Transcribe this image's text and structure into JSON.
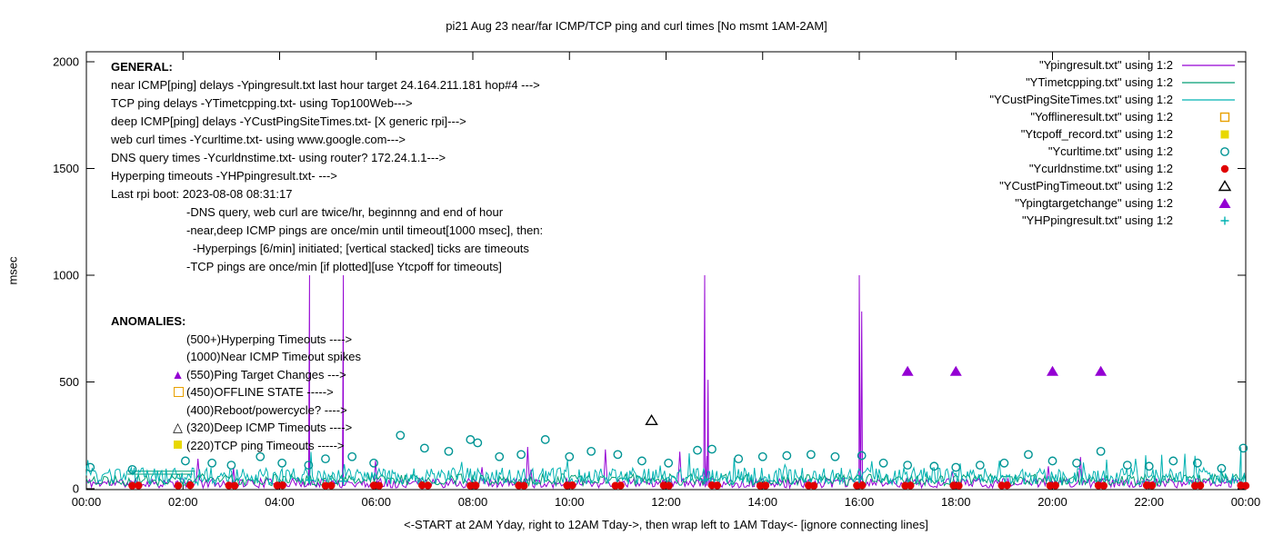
{
  "colors": {
    "purple": "#9400d3",
    "green": "#009e73",
    "teal": "#00b2b2",
    "cyan": "#009494",
    "orange": "#e8a000",
    "yellow": "#e8d800",
    "red": "#e00000",
    "black": "#000000"
  },
  "general": {
    "heading": "GENERAL:",
    "lines": [
      "near ICMP[ping] delays -Ypingresult.txt last hour target 24.164.211.181 hop#4 --->",
      "TCP ping delays -YTimetcpping.txt- using Top100Web--->",
      "deep ICMP[ping] delays -YCustPingSiteTimes.txt- [X generic rpi]--->",
      "web curl times -Ycurltime.txt- using www.google.com--->",
      "DNS query times -Ycurldnstime.txt- using router? 172.24.1.1--->",
      "Hyperping timeouts -YHPpingresult.txt- --->",
      "Last rpi boot: 2023-08-08 08:31:17"
    ],
    "notes": [
      "-DNS query, web curl are twice/hr, beginnng and end of hour",
      "-near,deep ICMP pings are once/min until timeout[1000 msec], then:",
      "-Hyperpings [6/min] initiated; [vertical stacked] ticks are timeouts",
      "-TCP pings are once/min [if plotted][use Ytcpoff for timeouts]"
    ]
  },
  "anomalies": {
    "heading": "ANOMALIES:",
    "items": [
      {
        "text": "(500+)Hyperping Timeouts ---->",
        "marker": null
      },
      {
        "text": "(1000)Near ICMP Timeout spikes",
        "marker": null
      },
      {
        "text": "(550)Ping Target Changes --->",
        "marker": {
          "type": "triangle-filled",
          "color": "purple"
        }
      },
      {
        "text": "(450)OFFLINE STATE ----->",
        "marker": {
          "type": "square-open",
          "color": "orange"
        }
      },
      {
        "text": "(400)Reboot/powercycle? ---->",
        "marker": null
      },
      {
        "text": "(320)Deep ICMP Timeouts ---->",
        "marker": {
          "type": "triangle-open",
          "color": "black"
        }
      },
      {
        "text": "(220)TCP ping Timeouts ----->",
        "marker": {
          "type": "square-filled",
          "color": "yellow"
        }
      }
    ]
  },
  "chart_data": {
    "type": "line-scatter",
    "title": "pi21 Aug 23  near/far ICMP/TCP ping and curl times [No msmt 1AM-2AM]",
    "xlabel": "<-START at 2AM Yday, right to 12AM Tday->, then wrap left to 1AM Tday<- [ignore connecting lines]",
    "ylabel": "msec",
    "xlim": [
      0,
      24
    ],
    "ylim": [
      0,
      2000
    ],
    "y_ticks": [
      0,
      500,
      1000,
      1500,
      2000
    ],
    "x_ticks": [
      {
        "h": 0,
        "label": "00:00"
      },
      {
        "h": 2,
        "label": "02:00"
      },
      {
        "h": 4,
        "label": "04:00"
      },
      {
        "h": 6,
        "label": "06:00"
      },
      {
        "h": 8,
        "label": "08:00"
      },
      {
        "h": 10,
        "label": "10:00"
      },
      {
        "h": 12,
        "label": "12:00"
      },
      {
        "h": 14,
        "label": "14:00"
      },
      {
        "h": 16,
        "label": "16:00"
      },
      {
        "h": 18,
        "label": "18:00"
      },
      {
        "h": 20,
        "label": "20:00"
      },
      {
        "h": 22,
        "label": "22:00"
      },
      {
        "h": 24,
        "label": "00:00"
      }
    ],
    "legend_position": "top-right",
    "grid": false,
    "series": [
      {
        "name": "Ypingresult",
        "legend": "\"Ypingresult.txt\" using 1:2",
        "kind": "line",
        "color": "purple",
        "noise": {
          "seed": 11,
          "dx": 0.035,
          "base": 4,
          "range": 45,
          "spike_prob": 0.012,
          "spike_min": 80,
          "spike_max": 220
        },
        "spikes": [
          [
            4.62,
            1000
          ],
          [
            5.32,
            1000
          ],
          [
            12.8,
            1000
          ],
          [
            12.87,
            510
          ],
          [
            16.0,
            1000
          ],
          [
            16.05,
            830
          ]
        ]
      },
      {
        "name": "YTimetcpping",
        "legend": "\"YTimetcpping.txt\" using 1:2",
        "kind": "line",
        "color": "green",
        "noise": {
          "seed": 22,
          "dx": 0.04,
          "base": 14,
          "range": 55,
          "spike_prob": 0.008,
          "spike_min": 80,
          "spike_max": 160
        },
        "segments": [
          [
            0.85,
            68,
            2.2,
            68
          ],
          [
            0.9,
            82,
            2.25,
            82
          ]
        ]
      },
      {
        "name": "YCustPingSiteTimes",
        "legend": "\"YCustPingSiteTimes.txt\" using 1:2",
        "kind": "line",
        "color": "teal",
        "noise": {
          "seed": 33,
          "dx": 0.03,
          "base": 18,
          "range": 80,
          "spike_prob": 0.02,
          "spike_min": 100,
          "spike_max": 175
        },
        "spikes": [
          [
            23.9,
            195
          ]
        ]
      },
      {
        "name": "Yofflineresult",
        "legend": "\"Yofflineresult.txt\" using 1:2",
        "kind": "points",
        "marker": "square-open",
        "color": "orange",
        "points": []
      },
      {
        "name": "Ytcpoff_record",
        "legend": "\"Ytcpoff_record.txt\" using 1:2",
        "kind": "points",
        "marker": "square-filled",
        "color": "yellow",
        "points": []
      },
      {
        "name": "Ycurltime",
        "legend": "\"Ycurltime.txt\" using 1:2",
        "kind": "points",
        "marker": "circle-open",
        "color": "cyan",
        "points": [
          [
            0.08,
            100
          ],
          [
            0.95,
            90
          ],
          [
            2.05,
            130
          ],
          [
            2.6,
            120
          ],
          [
            3.0,
            110
          ],
          [
            3.6,
            150
          ],
          [
            4.05,
            120
          ],
          [
            4.6,
            110
          ],
          [
            4.95,
            140
          ],
          [
            5.5,
            150
          ],
          [
            5.95,
            120
          ],
          [
            6.5,
            250
          ],
          [
            7.0,
            190
          ],
          [
            7.5,
            175
          ],
          [
            7.95,
            230
          ],
          [
            8.1,
            215
          ],
          [
            8.55,
            150
          ],
          [
            9.0,
            160
          ],
          [
            9.5,
            230
          ],
          [
            10.0,
            150
          ],
          [
            10.45,
            175
          ],
          [
            11.0,
            160
          ],
          [
            11.5,
            130
          ],
          [
            12.05,
            120
          ],
          [
            12.65,
            180
          ],
          [
            12.95,
            185
          ],
          [
            13.5,
            140
          ],
          [
            14.0,
            150
          ],
          [
            14.5,
            155
          ],
          [
            15.0,
            160
          ],
          [
            15.5,
            150
          ],
          [
            16.05,
            155
          ],
          [
            16.5,
            120
          ],
          [
            17.0,
            110
          ],
          [
            17.55,
            105
          ],
          [
            18.0,
            100
          ],
          [
            18.5,
            110
          ],
          [
            19.0,
            120
          ],
          [
            19.5,
            160
          ],
          [
            20.0,
            130
          ],
          [
            20.5,
            120
          ],
          [
            21.0,
            175
          ],
          [
            21.55,
            110
          ],
          [
            22.0,
            105
          ],
          [
            22.5,
            130
          ],
          [
            23.0,
            120
          ],
          [
            23.5,
            95
          ],
          [
            23.95,
            190
          ]
        ]
      },
      {
        "name": "Ycurldnstime",
        "legend": "\"Ycurldnstime.txt\" using 1:2",
        "kind": "points",
        "marker": "circle-filled",
        "color": "red",
        "points": [
          [
            0.95,
            14
          ],
          [
            1.08,
            15
          ],
          [
            1.9,
            14
          ],
          [
            2.15,
            16
          ],
          [
            2.95,
            15
          ],
          [
            3.07,
            14
          ],
          [
            3.95,
            15
          ],
          [
            4.06,
            16
          ],
          [
            4.95,
            14
          ],
          [
            5.07,
            15
          ],
          [
            5.95,
            15
          ],
          [
            6.06,
            14
          ],
          [
            6.95,
            16
          ],
          [
            7.07,
            15
          ],
          [
            7.95,
            14
          ],
          [
            8.06,
            15
          ],
          [
            8.95,
            15
          ],
          [
            9.06,
            14
          ],
          [
            9.95,
            15
          ],
          [
            10.06,
            16
          ],
          [
            10.95,
            14
          ],
          [
            11.06,
            15
          ],
          [
            11.95,
            15
          ],
          [
            12.06,
            14
          ],
          [
            12.95,
            16
          ],
          [
            13.06,
            15
          ],
          [
            13.95,
            14
          ],
          [
            14.06,
            15
          ],
          [
            14.95,
            15
          ],
          [
            15.06,
            14
          ],
          [
            15.95,
            15
          ],
          [
            16.06,
            16
          ],
          [
            16.95,
            14
          ],
          [
            17.06,
            15
          ],
          [
            17.95,
            15
          ],
          [
            18.06,
            14
          ],
          [
            18.95,
            15
          ],
          [
            19.06,
            16
          ],
          [
            19.95,
            14
          ],
          [
            20.06,
            15
          ],
          [
            20.95,
            15
          ],
          [
            21.06,
            14
          ],
          [
            21.95,
            16
          ],
          [
            22.06,
            15
          ],
          [
            22.95,
            14
          ],
          [
            23.06,
            15
          ],
          [
            23.9,
            15
          ],
          [
            24.0,
            14
          ]
        ]
      },
      {
        "name": "YCustPingTimeout",
        "legend": "\"YCustPingTimeout.txt\" using 1:2",
        "kind": "points",
        "marker": "triangle-open",
        "color": "black",
        "points": [
          [
            11.7,
            320
          ]
        ]
      },
      {
        "name": "Ypingtargetchange",
        "legend": "\"Ypingtargetchange\" using 1:2",
        "kind": "points",
        "marker": "triangle-filled",
        "color": "purple",
        "points": [
          [
            17,
            550
          ],
          [
            18,
            550
          ],
          [
            20,
            550
          ],
          [
            21,
            550
          ]
        ]
      },
      {
        "name": "YHPpingresult",
        "legend": "\"YHPpingresult.txt\" using 1:2",
        "kind": "points",
        "marker": "plus",
        "color": "teal",
        "points": [
          [
            4.62,
            40
          ],
          [
            5.32,
            35
          ],
          [
            12.8,
            40
          ],
          [
            16.0,
            45
          ]
        ]
      }
    ]
  }
}
